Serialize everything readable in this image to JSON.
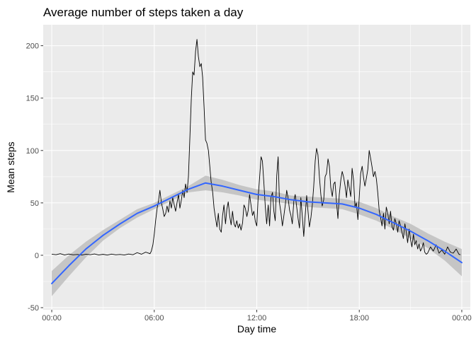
{
  "chart_data": {
    "type": "line",
    "title": "Average number of steps taken a day",
    "xlabel": "Day time",
    "ylabel": "Mean steps",
    "xlim": [
      -0.5,
      24.5
    ],
    "ylim": [
      -52,
      220
    ],
    "x_ticks": [
      0,
      6,
      12,
      18,
      24
    ],
    "x_tick_labels": [
      "00:00",
      "06:00",
      "12:00",
      "18:00",
      "00:00"
    ],
    "y_ticks": [
      -50,
      0,
      50,
      100,
      150,
      200
    ],
    "y_tick_labels": [
      "-50",
      "0",
      "50",
      "100",
      "150",
      "200"
    ],
    "grid": true,
    "background": "#ebebeb",
    "series": [
      {
        "kind": "line",
        "color": "#000000",
        "points": [
          [
            0.0,
            1.0
          ],
          [
            0.25,
            0.5
          ],
          [
            0.5,
            1.5
          ],
          [
            0.75,
            0.3
          ],
          [
            1.0,
            1.2
          ],
          [
            1.25,
            0.4
          ],
          [
            1.5,
            0.8
          ],
          [
            1.75,
            0.2
          ],
          [
            2.0,
            1.0
          ],
          [
            2.25,
            0.5
          ],
          [
            2.5,
            1.3
          ],
          [
            2.75,
            0.3
          ],
          [
            3.0,
            0.9
          ],
          [
            3.25,
            0.2
          ],
          [
            3.5,
            1.1
          ],
          [
            3.75,
            0.4
          ],
          [
            4.0,
            0.8
          ],
          [
            4.25,
            0.3
          ],
          [
            4.5,
            1.2
          ],
          [
            4.75,
            0.5
          ],
          [
            5.0,
            2.5
          ],
          [
            5.25,
            1.0
          ],
          [
            5.5,
            3.0
          ],
          [
            5.75,
            1.5
          ],
          [
            5.83,
            4.0
          ],
          [
            5.92,
            10.0
          ],
          [
            6.0,
            20.0
          ],
          [
            6.08,
            33.0
          ],
          [
            6.17,
            45.0
          ],
          [
            6.25,
            52.0
          ],
          [
            6.33,
            62.0
          ],
          [
            6.42,
            50.0
          ],
          [
            6.5,
            44.0
          ],
          [
            6.58,
            37.0
          ],
          [
            6.67,
            40.0
          ],
          [
            6.75,
            47.0
          ],
          [
            6.83,
            41.0
          ],
          [
            6.92,
            52.0
          ],
          [
            7.0,
            45.0
          ],
          [
            7.08,
            55.0
          ],
          [
            7.17,
            48.0
          ],
          [
            7.25,
            42.0
          ],
          [
            7.33,
            50.0
          ],
          [
            7.42,
            58.0
          ],
          [
            7.5,
            45.0
          ],
          [
            7.58,
            52.0
          ],
          [
            7.67,
            62.0
          ],
          [
            7.75,
            55.0
          ],
          [
            7.83,
            68.0
          ],
          [
            7.92,
            60.0
          ],
          [
            8.0,
            75.0
          ],
          [
            8.08,
            110.0
          ],
          [
            8.17,
            150.0
          ],
          [
            8.25,
            175.0
          ],
          [
            8.33,
            172.0
          ],
          [
            8.42,
            195.0
          ],
          [
            8.5,
            206.0
          ],
          [
            8.58,
            190.0
          ],
          [
            8.67,
            180.0
          ],
          [
            8.75,
            183.0
          ],
          [
            8.83,
            170.0
          ],
          [
            8.92,
            140.0
          ],
          [
            9.0,
            110.0
          ],
          [
            9.08,
            107.0
          ],
          [
            9.17,
            100.0
          ],
          [
            9.25,
            85.0
          ],
          [
            9.33,
            70.0
          ],
          [
            9.42,
            60.0
          ],
          [
            9.5,
            45.0
          ],
          [
            9.58,
            36.0
          ],
          [
            9.67,
            27.0
          ],
          [
            9.75,
            40.0
          ],
          [
            9.83,
            25.0
          ],
          [
            9.92,
            22.0
          ],
          [
            10.0,
            38.0
          ],
          [
            10.08,
            48.0
          ],
          [
            10.17,
            30.0
          ],
          [
            10.25,
            44.0
          ],
          [
            10.33,
            51.0
          ],
          [
            10.42,
            37.0
          ],
          [
            10.5,
            29.0
          ],
          [
            10.58,
            42.0
          ],
          [
            10.67,
            30.0
          ],
          [
            10.75,
            27.0
          ],
          [
            10.83,
            33.0
          ],
          [
            10.92,
            26.0
          ],
          [
            11.0,
            30.0
          ],
          [
            11.08,
            24.0
          ],
          [
            11.17,
            31.0
          ],
          [
            11.25,
            48.0
          ],
          [
            11.33,
            45.0
          ],
          [
            11.42,
            37.0
          ],
          [
            11.5,
            43.0
          ],
          [
            11.58,
            58.0
          ],
          [
            11.67,
            47.0
          ],
          [
            11.75,
            38.0
          ],
          [
            11.83,
            42.0
          ],
          [
            11.92,
            32.0
          ],
          [
            12.0,
            28.0
          ],
          [
            12.08,
            55.0
          ],
          [
            12.17,
            75.0
          ],
          [
            12.25,
            94.0
          ],
          [
            12.33,
            90.0
          ],
          [
            12.42,
            68.0
          ],
          [
            12.5,
            46.0
          ],
          [
            12.58,
            30.0
          ],
          [
            12.67,
            48.0
          ],
          [
            12.75,
            28.0
          ],
          [
            12.83,
            55.0
          ],
          [
            12.92,
            60.0
          ],
          [
            13.0,
            42.0
          ],
          [
            13.08,
            33.0
          ],
          [
            13.17,
            76.0
          ],
          [
            13.25,
            94.0
          ],
          [
            13.33,
            50.0
          ],
          [
            13.42,
            40.0
          ],
          [
            13.5,
            28.0
          ],
          [
            13.58,
            37.0
          ],
          [
            13.67,
            48.0
          ],
          [
            13.75,
            62.0
          ],
          [
            13.83,
            55.0
          ],
          [
            13.92,
            43.0
          ],
          [
            14.0,
            38.0
          ],
          [
            14.08,
            30.0
          ],
          [
            14.17,
            52.0
          ],
          [
            14.25,
            58.0
          ],
          [
            14.33,
            47.0
          ],
          [
            14.42,
            35.0
          ],
          [
            14.5,
            26.0
          ],
          [
            14.58,
            55.0
          ],
          [
            14.67,
            36.0
          ],
          [
            14.75,
            18.0
          ],
          [
            14.83,
            37.0
          ],
          [
            14.92,
            57.0
          ],
          [
            15.0,
            42.0
          ],
          [
            15.08,
            27.0
          ],
          [
            15.17,
            36.0
          ],
          [
            15.25,
            48.0
          ],
          [
            15.33,
            65.0
          ],
          [
            15.42,
            90.0
          ],
          [
            15.5,
            102.0
          ],
          [
            15.58,
            96.0
          ],
          [
            15.67,
            74.0
          ],
          [
            15.75,
            58.0
          ],
          [
            15.83,
            47.0
          ],
          [
            15.92,
            53.0
          ],
          [
            16.0,
            75.0
          ],
          [
            16.08,
            78.0
          ],
          [
            16.17,
            92.0
          ],
          [
            16.25,
            85.0
          ],
          [
            16.33,
            65.0
          ],
          [
            16.42,
            56.0
          ],
          [
            16.5,
            68.0
          ],
          [
            16.58,
            70.0
          ],
          [
            16.67,
            50.0
          ],
          [
            16.75,
            35.0
          ],
          [
            16.83,
            58.0
          ],
          [
            16.92,
            72.0
          ],
          [
            17.0,
            80.0
          ],
          [
            17.08,
            75.0
          ],
          [
            17.17,
            66.0
          ],
          [
            17.25,
            55.0
          ],
          [
            17.33,
            72.0
          ],
          [
            17.42,
            64.0
          ],
          [
            17.5,
            56.0
          ],
          [
            17.58,
            83.0
          ],
          [
            17.67,
            71.0
          ],
          [
            17.75,
            46.0
          ],
          [
            17.83,
            50.0
          ],
          [
            17.92,
            34.0
          ],
          [
            18.0,
            56.0
          ],
          [
            18.08,
            78.0
          ],
          [
            18.17,
            85.0
          ],
          [
            18.25,
            74.0
          ],
          [
            18.33,
            66.0
          ],
          [
            18.42,
            74.0
          ],
          [
            18.5,
            82.0
          ],
          [
            18.58,
            100.0
          ],
          [
            18.67,
            92.0
          ],
          [
            18.75,
            84.0
          ],
          [
            18.83,
            75.0
          ],
          [
            18.92,
            80.0
          ],
          [
            19.0,
            73.0
          ],
          [
            19.08,
            60.0
          ],
          [
            19.17,
            42.0
          ],
          [
            19.25,
            36.0
          ],
          [
            19.33,
            28.0
          ],
          [
            19.42,
            40.0
          ],
          [
            19.5,
            25.0
          ],
          [
            19.58,
            46.0
          ],
          [
            19.67,
            40.0
          ],
          [
            19.75,
            30.0
          ],
          [
            19.83,
            42.0
          ],
          [
            19.92,
            27.0
          ],
          [
            20.0,
            24.0
          ],
          [
            20.08,
            35.0
          ],
          [
            20.17,
            30.0
          ],
          [
            20.25,
            22.0
          ],
          [
            20.33,
            33.0
          ],
          [
            20.42,
            28.0
          ],
          [
            20.5,
            22.0
          ],
          [
            20.58,
            16.0
          ],
          [
            20.67,
            30.0
          ],
          [
            20.75,
            22.0
          ],
          [
            20.83,
            12.0
          ],
          [
            20.92,
            25.0
          ],
          [
            21.0,
            15.0
          ],
          [
            21.08,
            8.0
          ],
          [
            21.17,
            20.0
          ],
          [
            21.25,
            10.0
          ],
          [
            21.33,
            14.0
          ],
          [
            21.42,
            6.0
          ],
          [
            21.5,
            11.0
          ],
          [
            21.58,
            4.0
          ],
          [
            21.67,
            7.0
          ],
          [
            21.75,
            12.0
          ],
          [
            21.83,
            3.0
          ],
          [
            21.92,
            1.0
          ],
          [
            22.0,
            2.0
          ],
          [
            22.17,
            8.0
          ],
          [
            22.33,
            4.0
          ],
          [
            22.5,
            10.0
          ],
          [
            22.67,
            2.0
          ],
          [
            22.83,
            5.0
          ],
          [
            23.0,
            1.0
          ],
          [
            23.17,
            8.0
          ],
          [
            23.33,
            3.0
          ],
          [
            23.5,
            2.0
          ],
          [
            23.67,
            6.0
          ],
          [
            23.83,
            1.0
          ],
          [
            23.92,
            0.5
          ]
        ]
      },
      {
        "kind": "smooth",
        "color": "#3366ff",
        "band_color": "#bebebe",
        "points": [
          [
            0,
            -27
          ],
          [
            1,
            -10
          ],
          [
            2,
            6
          ],
          [
            3,
            19
          ],
          [
            4,
            30
          ],
          [
            5,
            40
          ],
          [
            6,
            47
          ],
          [
            7,
            55
          ],
          [
            8,
            63
          ],
          [
            9,
            69
          ],
          [
            10,
            66
          ],
          [
            11,
            62
          ],
          [
            12,
            58
          ],
          [
            13,
            56
          ],
          [
            14,
            53
          ],
          [
            15,
            51
          ],
          [
            16,
            50
          ],
          [
            17,
            49
          ],
          [
            18,
            45
          ],
          [
            19,
            39
          ],
          [
            20,
            31
          ],
          [
            21,
            23
          ],
          [
            22,
            14
          ],
          [
            23,
            4
          ],
          [
            24,
            -7
          ]
        ],
        "upper": [
          [
            0,
            -15
          ],
          [
            1,
            0
          ],
          [
            2,
            13
          ],
          [
            3,
            24
          ],
          [
            4,
            34
          ],
          [
            5,
            44
          ],
          [
            6,
            50
          ],
          [
            7,
            58
          ],
          [
            8,
            66
          ],
          [
            9,
            76
          ],
          [
            10,
            72
          ],
          [
            11,
            67
          ],
          [
            12,
            63
          ],
          [
            13,
            61
          ],
          [
            14,
            57
          ],
          [
            15,
            56
          ],
          [
            16,
            55
          ],
          [
            17,
            54
          ],
          [
            18,
            51
          ],
          [
            19,
            45
          ],
          [
            20,
            37
          ],
          [
            21,
            30
          ],
          [
            22,
            21
          ],
          [
            23,
            13
          ],
          [
            24,
            6
          ]
        ],
        "lower": [
          [
            0,
            -39
          ],
          [
            1,
            -20
          ],
          [
            2,
            -2
          ],
          [
            3,
            14
          ],
          [
            4,
            26
          ],
          [
            5,
            36
          ],
          [
            6,
            44
          ],
          [
            7,
            52
          ],
          [
            8,
            60
          ],
          [
            9,
            62
          ],
          [
            10,
            60
          ],
          [
            11,
            57
          ],
          [
            12,
            53
          ],
          [
            13,
            51
          ],
          [
            14,
            49
          ],
          [
            15,
            46
          ],
          [
            16,
            45
          ],
          [
            17,
            44
          ],
          [
            18,
            39
          ],
          [
            19,
            33
          ],
          [
            20,
            25
          ],
          [
            21,
            16
          ],
          [
            22,
            7
          ],
          [
            23,
            -5
          ],
          [
            24,
            -20
          ]
        ]
      }
    ]
  }
}
